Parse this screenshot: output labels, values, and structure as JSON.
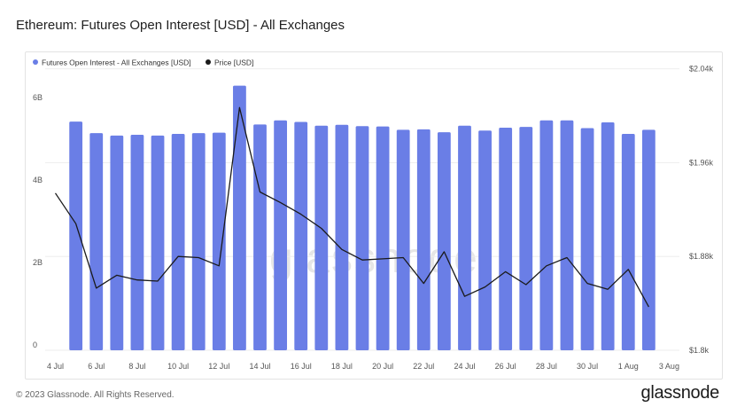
{
  "header": {
    "title": "Ethereum: Futures Open Interest [USD] - All Exchanges"
  },
  "footer": {
    "copyright": "© 2023 Glassnode. All Rights Reserved.",
    "brand": "glassnode",
    "watermark": "glassnode"
  },
  "colors": {
    "bar": "#6a7ee6",
    "line": "#1a1a1a",
    "grid": "#eeeeee",
    "axis_text": "#555555"
  },
  "chart_data": {
    "type": "bar",
    "title": "Ethereum: Futures Open Interest [USD] - All Exchanges",
    "legend_position": "top-left",
    "grid": true,
    "x": [
      "4 Jul",
      "5 Jul",
      "6 Jul",
      "7 Jul",
      "8 Jul",
      "9 Jul",
      "10 Jul",
      "11 Jul",
      "12 Jul",
      "13 Jul",
      "14 Jul",
      "15 Jul",
      "16 Jul",
      "17 Jul",
      "18 Jul",
      "19 Jul",
      "20 Jul",
      "21 Jul",
      "22 Jul",
      "23 Jul",
      "24 Jul",
      "25 Jul",
      "26 Jul",
      "27 Jul",
      "28 Jul",
      "29 Jul",
      "30 Jul",
      "31 Jul",
      "1 Aug",
      "2 Aug",
      "3 Aug"
    ],
    "x_tick_labels": [
      "4 Jul",
      "6 Jul",
      "8 Jul",
      "10 Jul",
      "12 Jul",
      "14 Jul",
      "16 Jul",
      "18 Jul",
      "20 Jul",
      "22 Jul",
      "24 Jul",
      "26 Jul",
      "28 Jul",
      "30 Jul",
      "1 Aug",
      "3 Aug"
    ],
    "y_left": {
      "ticks": [
        "0",
        "2B",
        "4B",
        "6B"
      ],
      "tick_values": [
        0,
        2,
        4,
        6
      ],
      "range": [
        0,
        6.8
      ],
      "unit": "B"
    },
    "y_right": {
      "ticks": [
        "$1.8k",
        "$1.88k",
        "$1.96k",
        "$2.04k"
      ],
      "tick_values": [
        1.8,
        1.88,
        1.96,
        2.04
      ],
      "range": [
        1.8,
        2.039
      ]
    },
    "series": [
      {
        "name": "Futures Open Interest - All Exchanges [USD]",
        "kind": "bar",
        "axis": "left",
        "values": [
          null,
          5.55,
          5.27,
          5.21,
          5.23,
          5.21,
          5.25,
          5.27,
          5.28,
          6.42,
          5.48,
          5.58,
          5.54,
          5.45,
          5.47,
          5.44,
          5.43,
          5.35,
          5.36,
          5.29,
          5.45,
          5.33,
          5.4,
          5.42,
          5.58,
          5.58,
          5.39,
          5.53,
          5.25,
          5.35,
          null
        ]
      },
      {
        "name": "Price [USD]",
        "kind": "line",
        "axis": "right",
        "values": [
          1.934,
          1.908,
          1.853,
          1.864,
          1.86,
          1.859,
          1.88,
          1.879,
          1.872,
          2.007,
          1.935,
          1.926,
          1.916,
          1.904,
          1.886,
          1.877,
          1.878,
          1.879,
          1.857,
          1.884,
          1.846,
          1.854,
          1.867,
          1.856,
          1.872,
          1.879,
          1.857,
          1.852,
          1.869,
          1.837,
          null
        ]
      }
    ]
  }
}
